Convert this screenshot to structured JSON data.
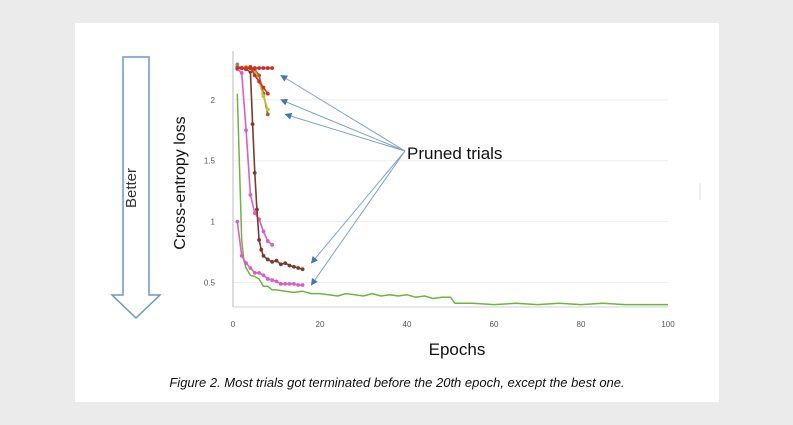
{
  "figure": {
    "caption": "Figure 2. Most trials got terminated before the 20th epoch, except the best one."
  },
  "chart_data": {
    "type": "line",
    "title": "",
    "xlabel": "Epochs",
    "ylabel": "Cross-entropy loss",
    "xlim": [
      0,
      100
    ],
    "ylim": [
      0.3,
      2.4
    ],
    "x_ticks": [
      "0",
      "20",
      "40",
      "60",
      "80",
      "100"
    ],
    "y_ticks": [
      "0.5",
      "1",
      "1.5",
      "2"
    ],
    "y_tick_values": [
      0.5,
      1,
      1.5,
      2
    ],
    "x_tick_values": [
      0,
      20,
      40,
      60,
      80,
      100
    ],
    "grid": true,
    "annotations": {
      "pruned_label": "Pruned trials",
      "better_label": "Better"
    },
    "series": [
      {
        "color": "#6fb43f",
        "markers": false,
        "x": [
          1,
          1.5,
          2,
          2.5,
          3,
          4,
          5,
          6,
          7,
          8,
          9,
          10,
          12,
          14,
          16,
          18,
          20,
          22,
          24,
          26,
          28,
          30,
          32,
          34,
          36,
          38,
          40,
          42,
          44,
          46,
          48,
          50,
          51,
          55,
          60,
          65,
          70,
          75,
          80,
          85,
          90,
          95,
          100
        ],
        "y": [
          2.05,
          1.45,
          0.85,
          0.68,
          0.62,
          0.56,
          0.55,
          0.53,
          0.47,
          0.47,
          0.44,
          0.44,
          0.43,
          0.42,
          0.43,
          0.41,
          0.41,
          0.4,
          0.39,
          0.41,
          0.4,
          0.39,
          0.41,
          0.39,
          0.4,
          0.39,
          0.4,
          0.38,
          0.39,
          0.37,
          0.38,
          0.38,
          0.33,
          0.33,
          0.32,
          0.33,
          0.32,
          0.33,
          0.32,
          0.33,
          0.32,
          0.32,
          0.32
        ]
      },
      {
        "color": "#d95fc6",
        "markers": true,
        "x": [
          1,
          2,
          3,
          4,
          5,
          6,
          7,
          8,
          9,
          10,
          11,
          12,
          13,
          14,
          15,
          16
        ],
        "y": [
          1.0,
          0.72,
          0.66,
          0.62,
          0.58,
          0.58,
          0.56,
          0.53,
          0.52,
          0.51,
          0.49,
          0.49,
          0.49,
          0.49,
          0.48,
          0.48
        ]
      },
      {
        "color": "#d95fc6",
        "markers": true,
        "x": [
          1,
          2,
          3,
          4,
          5,
          6,
          7,
          8,
          9
        ],
        "y": [
          2.25,
          2.22,
          1.75,
          1.22,
          1.07,
          1.02,
          0.92,
          0.84,
          0.81
        ]
      },
      {
        "color": "#7a3b2e",
        "markers": true,
        "x": [
          1,
          2,
          3,
          4,
          4.5,
          5,
          5.5,
          6,
          6.5,
          7,
          8,
          9,
          10,
          11,
          12,
          13,
          14,
          15,
          16
        ],
        "y": [
          2.26,
          2.26,
          2.25,
          2.23,
          1.8,
          1.4,
          1.1,
          0.85,
          0.77,
          0.72,
          0.69,
          0.67,
          0.68,
          0.65,
          0.66,
          0.64,
          0.63,
          0.62,
          0.61
        ]
      },
      {
        "color": "#a65a2a",
        "markers": true,
        "x": [
          1,
          2,
          3,
          4,
          5,
          6,
          7,
          8
        ],
        "y": [
          2.27,
          2.26,
          2.27,
          2.26,
          2.25,
          2.2,
          2.05,
          1.88
        ]
      },
      {
        "color": "#c6c32a",
        "markers": true,
        "x": [
          1,
          2,
          3,
          4,
          5,
          6,
          7,
          8
        ],
        "y": [
          2.27,
          2.26,
          2.27,
          2.25,
          2.22,
          2.15,
          2.03,
          1.92
        ]
      },
      {
        "color": "#d0302a",
        "markers": true,
        "x": [
          1,
          2,
          3,
          4,
          5,
          6,
          7,
          8
        ],
        "y": [
          2.27,
          2.26,
          2.25,
          2.27,
          2.2,
          2.15,
          2.1,
          2.05
        ]
      },
      {
        "color": "#d0302a",
        "markers": true,
        "x": [
          1,
          2,
          3,
          4,
          5,
          6,
          7,
          8,
          9
        ],
        "y": [
          2.26,
          2.26,
          2.26,
          2.26,
          2.26,
          2.26,
          2.26,
          2.26,
          2.26
        ]
      },
      {
        "color": "#888888",
        "markers": true,
        "x": [
          1
        ],
        "y": [
          2.29
        ]
      }
    ],
    "arrow_targets": [
      {
        "x": 11,
        "y": 2.2
      },
      {
        "x": 11,
        "y": 2.0
      },
      {
        "x": 12,
        "y": 1.88
      },
      {
        "x": 18,
        "y": 0.66
      },
      {
        "x": 18,
        "y": 0.48
      }
    ]
  }
}
